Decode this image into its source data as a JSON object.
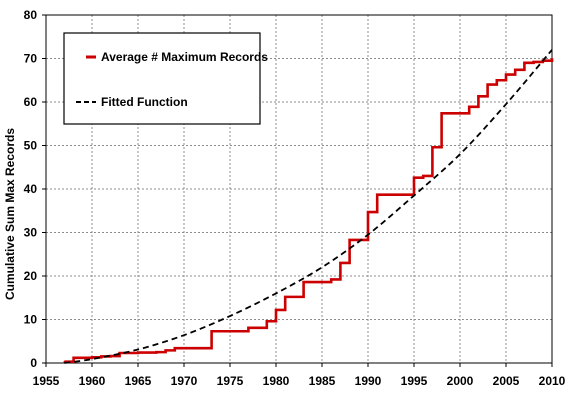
{
  "chart_data": {
    "type": "line",
    "title": "",
    "xlabel": "",
    "ylabel": "Cumulative Sum Max Records",
    "xlim": [
      1955,
      2010
    ],
    "ylim": [
      0,
      80
    ],
    "x_ticks": [
      "1955",
      "1960",
      "1965",
      "1970",
      "1975",
      "1980",
      "1985",
      "1990",
      "1995",
      "2000",
      "2005",
      "2010"
    ],
    "y_ticks": [
      "0",
      "10",
      "20",
      "30",
      "40",
      "50",
      "60",
      "70",
      "80"
    ],
    "grid": true,
    "legend_position": "top-left",
    "series": [
      {
        "name": "Average # Maximum Records",
        "style": "step",
        "color": "#cc0000",
        "x": [
          1957,
          1958,
          1959,
          1960,
          1961,
          1962,
          1963,
          1964,
          1965,
          1966,
          1967,
          1968,
          1969,
          1970,
          1971,
          1972,
          1973,
          1974,
          1975,
          1976,
          1977,
          1978,
          1979,
          1980,
          1981,
          1982,
          1983,
          1984,
          1985,
          1986,
          1987,
          1988,
          1989,
          1990,
          1991,
          1992,
          1993,
          1994,
          1995,
          1996,
          1997,
          1998,
          1999,
          2000,
          2001,
          2002,
          2003,
          2004,
          2005,
          2006,
          2007,
          2008,
          2009,
          2010
        ],
        "values": [
          0.3,
          1.2,
          1.2,
          1.3,
          1.5,
          1.6,
          2.3,
          2.3,
          2.4,
          2.4,
          2.5,
          2.9,
          3.4,
          3.4,
          3.4,
          3.4,
          7.3,
          7.3,
          7.3,
          7.3,
          8.1,
          8.1,
          9.6,
          12.2,
          15.2,
          15.2,
          18.6,
          18.6,
          18.6,
          19.2,
          23.0,
          28.3,
          28.3,
          34.7,
          38.7,
          38.7,
          38.7,
          38.7,
          42.6,
          43.0,
          49.6,
          57.4,
          57.4,
          57.4,
          58.9,
          61.3,
          64.0,
          65.0,
          66.3,
          67.4,
          69.0,
          69.2,
          69.5,
          70.0
        ]
      },
      {
        "name": "Fitted Function",
        "style": "dashed",
        "color": "#000000",
        "x": [
          1957,
          1960,
          1965,
          1970,
          1975,
          1980,
          1985,
          1990,
          1995,
          2000,
          2005,
          2010
        ],
        "values": [
          0,
          0.9,
          3.1,
          6.4,
          10.8,
          16.0,
          22.0,
          29.5,
          38.5,
          48.0,
          59.5,
          72.0
        ]
      }
    ]
  }
}
